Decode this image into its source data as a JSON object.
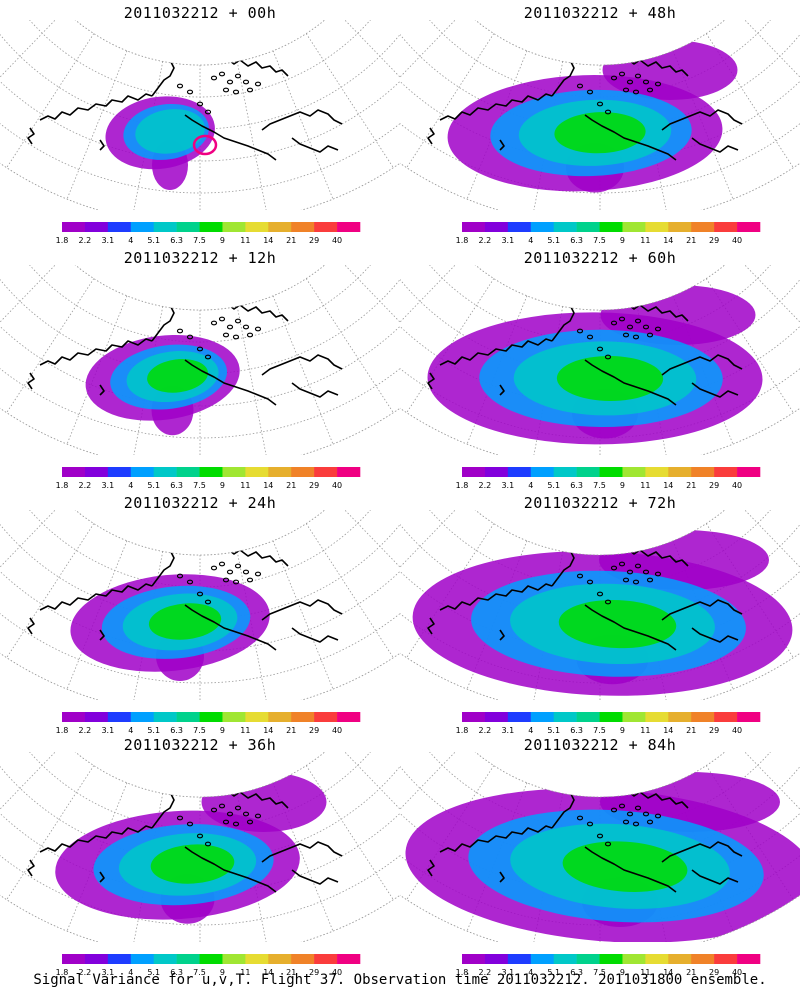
{
  "panels": [
    {
      "title": "2011032212 + 00h",
      "spread": 0.0,
      "eastward": 0.0,
      "ring": true
    },
    {
      "title": "2011032212 + 48h",
      "spread": 0.55,
      "eastward": 0.5,
      "ring": false
    },
    {
      "title": "2011032212 + 12h",
      "spread": 0.15,
      "eastward": 0.05,
      "ring": false
    },
    {
      "title": "2011032212 + 60h",
      "spread": 0.75,
      "eastward": 0.7,
      "ring": false
    },
    {
      "title": "2011032212 + 24h",
      "spread": 0.3,
      "eastward": 0.2,
      "ring": false
    },
    {
      "title": "2011032212 + 72h",
      "spread": 0.9,
      "eastward": 0.85,
      "ring": false
    },
    {
      "title": "2011032212 + 36h",
      "spread": 0.45,
      "eastward": 0.35,
      "ring": false
    },
    {
      "title": "2011032212 + 84h",
      "spread": 1.0,
      "eastward": 1.0,
      "ring": false
    }
  ],
  "colorbar": {
    "labels": [
      "1.8",
      "2.2",
      "3.1",
      "4",
      "5.1",
      "6.3",
      "7.5",
      "9",
      "11",
      "14",
      "21",
      "29",
      "40"
    ],
    "colors": [
      "#a000c8",
      "#8200dc",
      "#1e3cff",
      "#00a0ff",
      "#00c8c8",
      "#00d28c",
      "#00dc00",
      "#a0e632",
      "#e6dc32",
      "#e6af2d",
      "#f08228",
      "#fa3c3c",
      "#f00082"
    ]
  },
  "footer": "Signal Variance for u,v,T. Flight 37. Observation time 2011032212. 2011031800 ensemble."
}
